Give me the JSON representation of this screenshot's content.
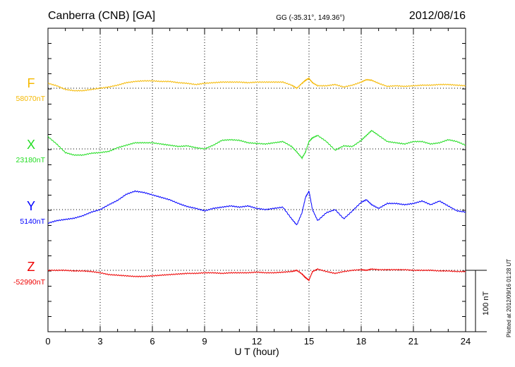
{
  "title_left": "Canberra (CNB)  [GA]",
  "title_center": "GG (-35.31°, 149.36°)",
  "title_right": "2012/08/16",
  "plotted_note": "Plotted at 2012/09/16 01:28 UT",
  "scale_bar_label": "100 nT",
  "chart_data": {
    "type": "line",
    "xlabel": "U T (hour)",
    "x_ticks": [
      "0",
      "3",
      "6",
      "9",
      "12",
      "15",
      "18",
      "21",
      "24"
    ],
    "xlim": [
      0,
      24
    ],
    "grid": true,
    "scale_bar_nT": 100,
    "series": [
      {
        "name": "F",
        "baseline_label": "58070nT",
        "baseline_nT": 58070,
        "color": "#f5b800",
        "x": [
          0,
          0.5,
          1,
          1.5,
          2,
          2.5,
          3,
          3.5,
          4,
          4.5,
          5,
          5.5,
          6,
          6.5,
          7,
          7.5,
          8,
          8.5,
          9,
          9.5,
          10,
          10.5,
          11,
          11.5,
          12,
          12.5,
          13,
          13.5,
          14,
          14.3,
          14.6,
          14.8,
          15.0,
          15.2,
          15.5,
          16,
          16.5,
          17,
          17.5,
          18,
          18.3,
          18.6,
          19,
          19.5,
          20,
          20.5,
          21,
          21.5,
          22,
          22.5,
          23,
          23.5,
          24
        ],
        "y": [
          8,
          4,
          -2,
          -4,
          -4,
          -2,
          0,
          2,
          5,
          9,
          11,
          12,
          12,
          11,
          11,
          9,
          8,
          6,
          8,
          9,
          10,
          10,
          10,
          9,
          10,
          10,
          10,
          10,
          5,
          0,
          8,
          13,
          16,
          9,
          4,
          4,
          6,
          2,
          5,
          10,
          14,
          13,
          8,
          3,
          4,
          3,
          4,
          5,
          5,
          6,
          6,
          5,
          4
        ]
      },
      {
        "name": "X",
        "baseline_label": "23180nT",
        "baseline_nT": 23180,
        "color": "#22dd22",
        "x": [
          0,
          0.5,
          1,
          1.5,
          2,
          2.5,
          3,
          3.5,
          4,
          4.5,
          5,
          5.5,
          6,
          6.5,
          7,
          7.5,
          8,
          8.5,
          9,
          9.5,
          10,
          10.5,
          11,
          11.5,
          12,
          12.5,
          13,
          13.5,
          14,
          14.3,
          14.6,
          14.8,
          15.0,
          15.2,
          15.5,
          16,
          16.5,
          17,
          17.5,
          18,
          18.3,
          18.6,
          19,
          19.5,
          20,
          20.5,
          21,
          21.5,
          22,
          22.5,
          23,
          23.5,
          24
        ],
        "y": [
          20,
          8,
          -6,
          -10,
          -10,
          -7,
          -6,
          -4,
          2,
          6,
          10,
          10,
          10,
          8,
          6,
          4,
          5,
          2,
          0,
          6,
          14,
          15,
          14,
          10,
          9,
          8,
          10,
          12,
          4,
          -5,
          -15,
          -5,
          12,
          18,
          22,
          12,
          -2,
          5,
          4,
          14,
          22,
          30,
          22,
          12,
          10,
          8,
          12,
          12,
          8,
          10,
          15,
          12,
          6
        ]
      },
      {
        "name": "Y",
        "baseline_label": "5140nT",
        "baseline_nT": 5140,
        "color": "#0000ff",
        "x": [
          0,
          0.5,
          1,
          1.5,
          2,
          2.5,
          3,
          3.5,
          4,
          4.5,
          5,
          5.5,
          6,
          6.5,
          7,
          7.5,
          8,
          8.5,
          9,
          9.5,
          10,
          10.5,
          11,
          11.5,
          12,
          12.5,
          13,
          13.5,
          14,
          14.3,
          14.6,
          14.8,
          15.0,
          15.2,
          15.5,
          16,
          16.5,
          17,
          17.5,
          18,
          18.3,
          18.6,
          19,
          19.5,
          20,
          20.5,
          21,
          21.5,
          22,
          22.5,
          23,
          23.5,
          24
        ],
        "y": [
          -22,
          -18,
          -16,
          -14,
          -10,
          -4,
          0,
          8,
          15,
          25,
          30,
          28,
          24,
          20,
          16,
          10,
          5,
          2,
          -2,
          2,
          4,
          6,
          4,
          6,
          2,
          0,
          2,
          4,
          -15,
          -25,
          -5,
          20,
          30,
          0,
          -18,
          -5,
          0,
          -15,
          -2,
          12,
          16,
          8,
          2,
          10,
          10,
          8,
          10,
          14,
          8,
          14,
          6,
          -2,
          -4
        ]
      },
      {
        "name": "Z",
        "baseline_label": "-52990nT",
        "baseline_nT": -52990,
        "color": "#ee0000",
        "x": [
          0,
          0.5,
          1,
          1.5,
          2,
          2.5,
          3,
          3.5,
          4,
          4.5,
          5,
          5.5,
          6,
          6.5,
          7,
          7.5,
          8,
          8.5,
          9,
          9.5,
          10,
          10.5,
          11,
          11.5,
          12,
          12.5,
          13,
          13.5,
          14,
          14.3,
          14.6,
          14.8,
          15.0,
          15.2,
          15.5,
          16,
          16.5,
          17,
          17.5,
          18,
          18.3,
          18.6,
          19,
          19.5,
          20,
          20.5,
          21,
          21.5,
          22,
          22.5,
          23,
          23.5,
          24
        ],
        "y": [
          0,
          0,
          0,
          -1,
          -1,
          -2,
          -4,
          -7,
          -8,
          -9,
          -10,
          -10,
          -9,
          -8,
          -7,
          -6,
          -5,
          -5,
          -4,
          -4,
          -5,
          -4,
          -4,
          -4,
          -3,
          -4,
          -4,
          -3,
          -2,
          0,
          -6,
          -12,
          -16,
          -2,
          2,
          -2,
          -5,
          -2,
          0,
          1,
          0,
          2,
          1,
          1,
          1,
          1,
          0,
          0,
          0,
          -1,
          -1,
          -2,
          -2
        ]
      }
    ]
  }
}
